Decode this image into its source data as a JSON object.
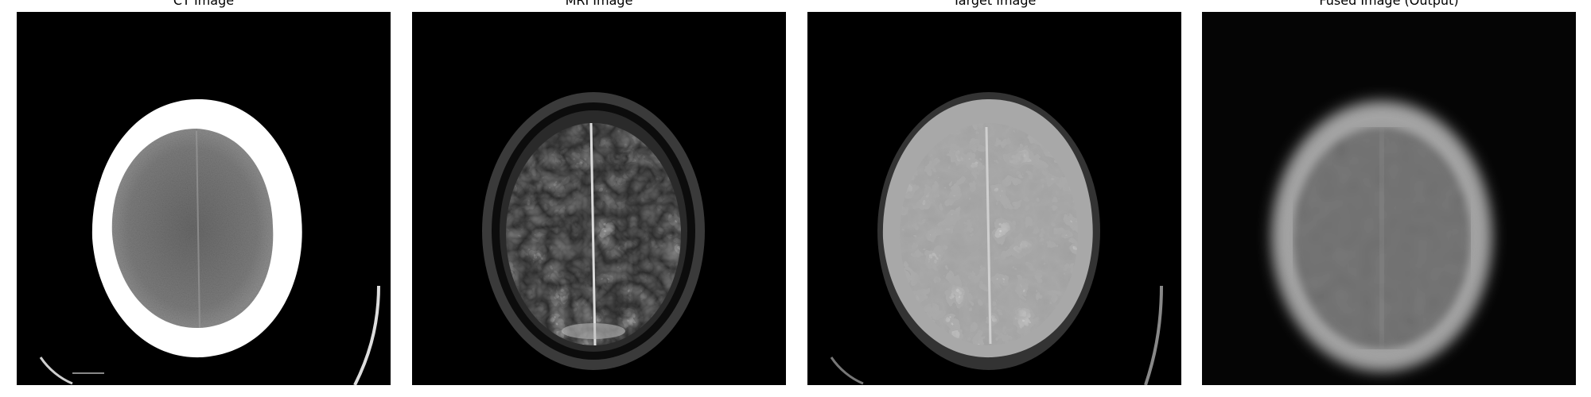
{
  "panels": [
    {
      "title": "CT Image",
      "scene": "ct-axial-head-slice"
    },
    {
      "title": "MRI Image",
      "scene": "mri-t2-axial-brain-slice"
    },
    {
      "title": "Target Image",
      "scene": "target-fused-axial-brain-slice"
    },
    {
      "title": "Fused Image (Output)",
      "scene": "blurred-fused-output-slice"
    }
  ],
  "colors": {
    "background": "#000000",
    "figure_background": "#ffffff",
    "title_text": "#000000"
  }
}
